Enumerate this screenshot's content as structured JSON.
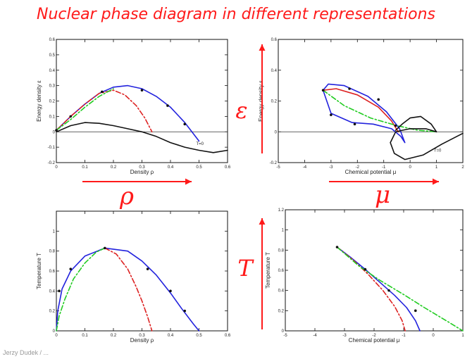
{
  "title": "Nuclear phase diagram in different representations",
  "footer": "Jerzy Dudek / ...",
  "symbols": {
    "rho": "ρ",
    "mu": "μ",
    "epsilon": "ε",
    "T": "T"
  },
  "colors": {
    "accent": "#ff1a1a",
    "blue": "#2222dd",
    "red": "#dd2222",
    "green": "#22cc22",
    "black": "#111111"
  },
  "chart_data": [
    {
      "id": "eps-rho",
      "type": "line",
      "xlabel": "Density  ρ",
      "ylabel": "Energy density  ε",
      "xlim": [
        0,
        0.6
      ],
      "ylim": [
        -0.2,
        0.6
      ],
      "xticks": [
        0,
        0.1,
        0.2,
        0.3,
        0.4,
        0.5,
        0.6
      ],
      "yticks": [
        -0.2,
        -0.1,
        0.0,
        0.1,
        0.2,
        0.3,
        0.4,
        0.5,
        0.6
      ],
      "hline": 0,
      "annotation": {
        "text": "T=0",
        "x": 0.49,
        "y": -0.085
      },
      "series": [
        {
          "color": "blue",
          "dash": "solid",
          "x": [
            0,
            0.05,
            0.1,
            0.15,
            0.2,
            0.25,
            0.3,
            0.35,
            0.4,
            0.45,
            0.5
          ],
          "y": [
            0.01,
            0.1,
            0.18,
            0.25,
            0.29,
            0.3,
            0.28,
            0.23,
            0.16,
            0.06,
            -0.06
          ]
        },
        {
          "color": "red",
          "dash": "dashdot",
          "x": [
            0,
            0.05,
            0.1,
            0.15,
            0.2,
            0.24,
            0.28,
            0.31,
            0.335
          ],
          "y": [
            0.01,
            0.1,
            0.18,
            0.25,
            0.27,
            0.24,
            0.17,
            0.09,
            0.0
          ]
        },
        {
          "color": "green",
          "dash": "dashdot",
          "x": [
            0,
            0.05,
            0.1,
            0.15,
            0.2
          ],
          "y": [
            0.01,
            0.08,
            0.16,
            0.23,
            0.28
          ]
        },
        {
          "color": "black",
          "dash": "solid",
          "x": [
            0,
            0.05,
            0.1,
            0.15,
            0.2,
            0.25,
            0.3,
            0.35,
            0.4,
            0.45,
            0.5,
            0.55,
            0.6
          ],
          "y": [
            0.0,
            0.04,
            0.06,
            0.055,
            0.04,
            0.02,
            0.0,
            -0.03,
            -0.07,
            -0.1,
            -0.12,
            -0.135,
            -0.12
          ]
        }
      ],
      "markers": {
        "x": [
          0,
          0.05,
          0.16,
          0.3,
          0.39,
          0.45
        ],
        "y": [
          0.01,
          0.1,
          0.26,
          0.27,
          0.17,
          0.05
        ]
      }
    },
    {
      "id": "eps-mu",
      "type": "line",
      "xlabel": "Chemical potential  μ",
      "ylabel": "Energy density  ε",
      "xlim": [
        -5,
        2
      ],
      "ylim": [
        -0.2,
        0.6
      ],
      "xticks": [
        -5,
        -4,
        -3,
        -2,
        -1,
        0,
        1,
        2
      ],
      "yticks": [
        -0.2,
        0.0,
        0.2,
        0.4,
        0.6
      ],
      "hline": 0,
      "annotation": {
        "text": "T=0",
        "x": 0.9,
        "y": -0.13
      },
      "series": [
        {
          "color": "blue",
          "dash": "solid",
          "x": [
            -3.3,
            -3.1,
            -2.5,
            -1.6,
            -0.9,
            -0.4,
            -0.2,
            -0.35,
            -0.7,
            -1.4,
            -2.2,
            -3.0,
            -3.3
          ],
          "y": [
            0.27,
            0.31,
            0.3,
            0.23,
            0.13,
            0.02,
            -0.07,
            -0.03,
            0.02,
            0.05,
            0.06,
            0.12,
            0.27
          ]
        },
        {
          "color": "red",
          "dash": "solid",
          "x": [
            -3.3,
            -2.8,
            -2.0,
            -1.2,
            -0.7,
            -0.45
          ],
          "y": [
            0.27,
            0.28,
            0.24,
            0.16,
            0.07,
            0.0
          ]
        },
        {
          "color": "green",
          "dash": "dashdot",
          "x": [
            -3.3,
            -2.5,
            -1.5,
            -0.5,
            0.3,
            1.0
          ],
          "y": [
            0.27,
            0.17,
            0.09,
            0.04,
            0.01,
            0.0
          ]
        },
        {
          "color": "black",
          "dash": "solid",
          "x": [
            -0.55,
            -0.3,
            0.0,
            0.4,
            0.8,
            1.0,
            0.6,
            0.0,
            -0.3,
            -0.55,
            -0.75,
            -0.6,
            -0.2,
            0.5,
            1.2,
            2.0
          ],
          "y": [
            0.01,
            0.05,
            0.09,
            0.1,
            0.05,
            0.0,
            0.02,
            0.02,
            0.01,
            0.0,
            -0.07,
            -0.14,
            -0.18,
            -0.15,
            -0.08,
            -0.01
          ]
        }
      ],
      "markers": {
        "x": [
          -3.3,
          -2.3,
          -1.2,
          -3.0,
          -2.1,
          -0.55
        ],
        "y": [
          0.27,
          0.28,
          0.21,
          0.11,
          0.05,
          0.04
        ]
      }
    },
    {
      "id": "T-rho",
      "type": "line",
      "xlabel": "Density  ρ",
      "ylabel": "Temperature  T",
      "xlim": [
        0,
        0.6
      ],
      "ylim": [
        0,
        1.2
      ],
      "xticks": [
        0,
        0.1,
        0.2,
        0.3,
        0.4,
        0.5,
        0.6
      ],
      "yticks": [
        0,
        0.2,
        0.4,
        0.6,
        0.8,
        1.0
      ],
      "series": [
        {
          "color": "blue",
          "dash": "solid",
          "x": [
            0,
            0.005,
            0.02,
            0.05,
            0.1,
            0.17,
            0.25,
            0.3,
            0.35,
            0.4,
            0.44,
            0.48,
            0.5
          ],
          "y": [
            0,
            0.2,
            0.42,
            0.6,
            0.75,
            0.83,
            0.8,
            0.7,
            0.56,
            0.38,
            0.22,
            0.07,
            0
          ]
        },
        {
          "color": "red",
          "dash": "dashdot",
          "x": [
            0.17,
            0.21,
            0.25,
            0.28,
            0.3,
            0.32,
            0.335
          ],
          "y": [
            0.83,
            0.77,
            0.62,
            0.44,
            0.3,
            0.14,
            0
          ]
        },
        {
          "color": "green",
          "dash": "dashdot",
          "x": [
            0,
            0.01,
            0.03,
            0.06,
            0.1,
            0.14,
            0.17
          ],
          "y": [
            0,
            0.15,
            0.32,
            0.52,
            0.68,
            0.79,
            0.83
          ]
        }
      ],
      "markers": {
        "x": [
          0.01,
          0.05,
          0.17,
          0.32,
          0.4,
          0.45
        ],
        "y": [
          0.4,
          0.62,
          0.83,
          0.62,
          0.4,
          0.2
        ]
      }
    },
    {
      "id": "T-mu",
      "type": "line",
      "xlabel": "Chemical potential  μ",
      "ylabel": "Temperature  T",
      "xlim": [
        -5,
        1
      ],
      "ylim": [
        0,
        1.2
      ],
      "xticks": [
        -5,
        -4,
        -3,
        -2,
        -1,
        0,
        1
      ],
      "yticks": [
        0,
        0.2,
        0.4,
        0.6,
        0.8,
        1.0,
        1.2
      ],
      "series": [
        {
          "color": "blue",
          "dash": "solid",
          "x": [
            -3.25,
            -2.8,
            -2.3,
            -1.8,
            -1.3,
            -0.9,
            -0.6,
            -0.45
          ],
          "y": [
            0.83,
            0.73,
            0.61,
            0.48,
            0.35,
            0.23,
            0.1,
            0.0
          ]
        },
        {
          "color": "red",
          "dash": "dashdot",
          "x": [
            -3.25,
            -2.7,
            -2.2,
            -1.7,
            -1.3,
            -1.05,
            -0.95
          ],
          "y": [
            0.83,
            0.7,
            0.56,
            0.4,
            0.24,
            0.1,
            0.0
          ]
        },
        {
          "color": "green",
          "dash": "dashdot",
          "x": [
            -3.25,
            -2.5,
            -1.8,
            -1.0,
            -0.3,
            0.5,
            1.0
          ],
          "y": [
            0.83,
            0.64,
            0.5,
            0.36,
            0.23,
            0.09,
            0.0
          ]
        }
      ],
      "markers": {
        "x": [
          -3.25,
          -2.3,
          -1.5,
          -0.6
        ],
        "y": [
          0.83,
          0.61,
          0.4,
          0.2
        ]
      }
    }
  ]
}
